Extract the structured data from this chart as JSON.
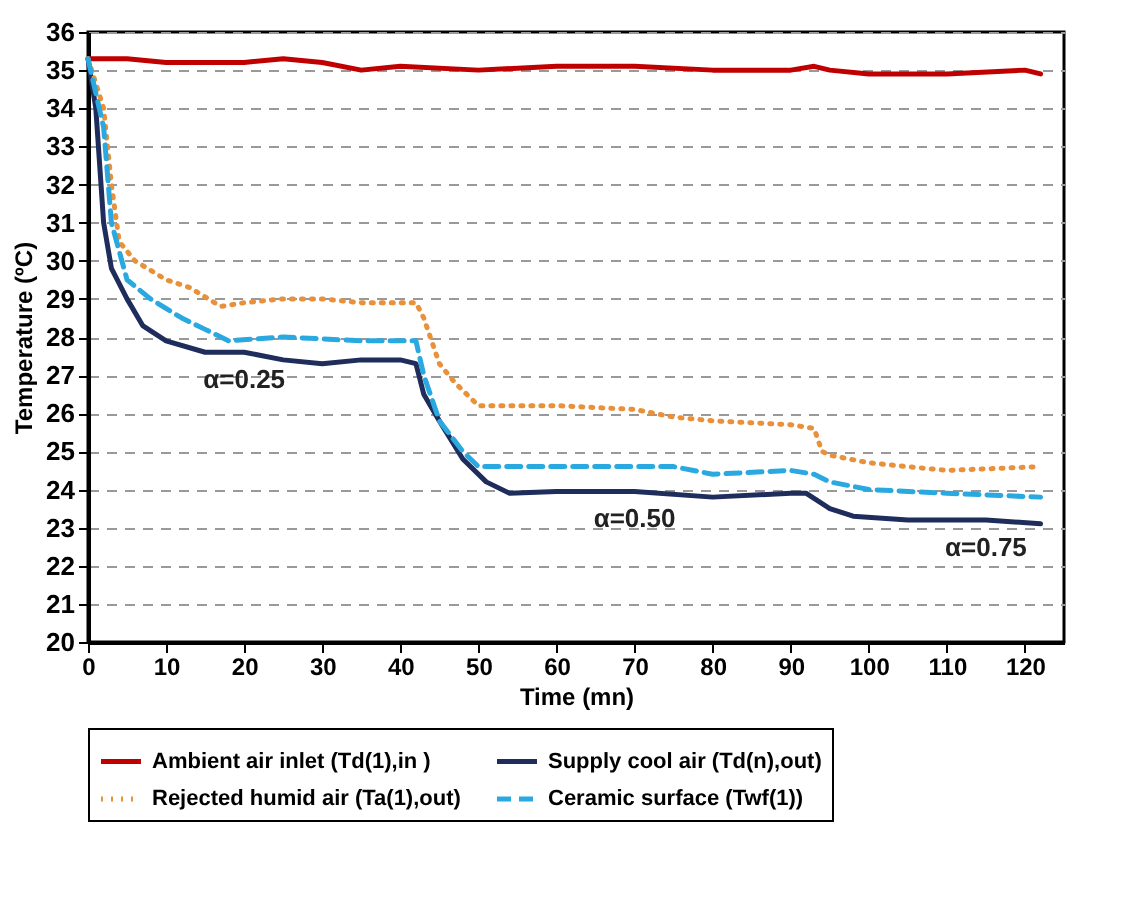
{
  "chart_data": {
    "type": "line",
    "xlabel": "Time  (mn)",
    "ylabel": "Temperature (ºC)",
    "xlim": [
      0,
      125
    ],
    "xticks": [
      0,
      10,
      20,
      30,
      40,
      50,
      60,
      70,
      80,
      90,
      100,
      110,
      120
    ],
    "ylim": [
      20,
      36
    ],
    "yticks": [
      20,
      21,
      22,
      23,
      24,
      25,
      26,
      27,
      28,
      29,
      30,
      31,
      32,
      33,
      34,
      35,
      36
    ],
    "grid": "y",
    "legend": "bottom",
    "marker": "none",
    "annotations": [
      {
        "text": "α=0.25",
        "x": 20,
        "y": 27.6
      },
      {
        "text": "α=0.50",
        "x": 70,
        "y": 23.95
      },
      {
        "text": "α=0.75",
        "x": 115,
        "y": 23.2
      }
    ],
    "series": [
      {
        "name": "Ambient air inlet (Td(1),in )",
        "color": "#c00000",
        "line_style": "solid",
        "x": [
          0,
          5,
          10,
          15,
          20,
          25,
          30,
          35,
          40,
          50,
          60,
          70,
          80,
          90,
          93,
          95,
          100,
          110,
          120,
          122
        ],
        "values": [
          35.3,
          35.3,
          35.2,
          35.2,
          35.2,
          35.3,
          35.2,
          35.0,
          35.1,
          35.0,
          35.1,
          35.1,
          35.0,
          35.0,
          35.1,
          35.0,
          34.9,
          34.9,
          35.0,
          34.9
        ]
      },
      {
        "name": "Supply cool air (Td(n),out)",
        "color": "#1f2d5c",
        "line_style": "solid",
        "x": [
          0,
          1,
          2,
          3,
          5,
          7,
          10,
          15,
          20,
          25,
          30,
          35,
          40,
          42,
          43,
          45,
          48,
          51,
          54,
          60,
          70,
          80,
          90,
          92,
          95,
          98,
          105,
          115,
          122
        ],
        "values": [
          35.3,
          34,
          31,
          29.8,
          29,
          28.3,
          27.9,
          27.6,
          27.6,
          27.4,
          27.3,
          27.4,
          27.4,
          27.3,
          26.5,
          25.8,
          24.8,
          24.2,
          23.9,
          23.95,
          23.95,
          23.8,
          23.9,
          23.9,
          23.5,
          23.3,
          23.2,
          23.2,
          23.1
        ]
      },
      {
        "name": "Rejected humid air (Ta(1),out)",
        "color": "#e8903a",
        "line_style": "dotted",
        "x": [
          0,
          2,
          3,
          4,
          6,
          10,
          13,
          17,
          20,
          25,
          30,
          35,
          42,
          43,
          45,
          47,
          50,
          60,
          70,
          75,
          80,
          90,
          93,
          94,
          95,
          100,
          110,
          122
        ],
        "values": [
          35.3,
          34,
          32,
          30.5,
          30.0,
          29.5,
          29.3,
          28.8,
          28.9,
          29.0,
          29.0,
          28.9,
          28.9,
          28.5,
          27.3,
          26.8,
          26.2,
          26.2,
          26.1,
          25.9,
          25.8,
          25.7,
          25.6,
          25.0,
          24.9,
          24.7,
          24.5,
          24.6
        ]
      },
      {
        "name": "Ceramic surface (Twf(1))",
        "color": "#29a9e0",
        "line_style": "dashed",
        "x": [
          0,
          2,
          3,
          5,
          8,
          12,
          15,
          18,
          25,
          35,
          42,
          43,
          45,
          48,
          50,
          60,
          75,
          80,
          90,
          93,
          95,
          100,
          110,
          122
        ],
        "values": [
          35.3,
          33.5,
          31,
          29.5,
          29,
          28.5,
          28.2,
          27.9,
          28.0,
          27.9,
          27.9,
          27,
          25.8,
          25,
          24.6,
          24.6,
          24.6,
          24.4,
          24.5,
          24.4,
          24.2,
          24.0,
          23.9,
          23.8
        ]
      }
    ]
  }
}
